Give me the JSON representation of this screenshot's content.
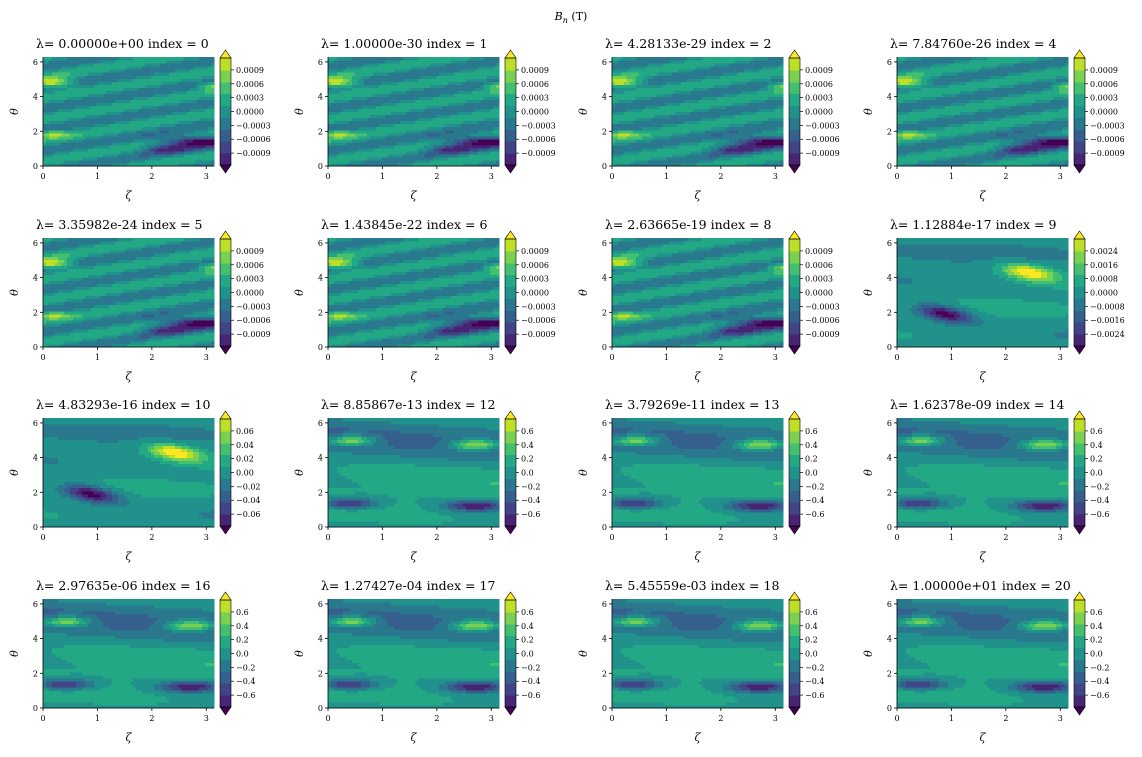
{
  "figure": {
    "suptitle": "B",
    "suptitle_sub": "n",
    "suptitle_unit": " (T)"
  },
  "chart_data": {
    "type": "heatmap",
    "layout": {
      "rows": 4,
      "cols": 4
    },
    "xlabel": "ζ",
    "ylabel": "θ",
    "xlim": [
      0,
      3.14159
    ],
    "ylim": [
      0,
      6.28319
    ],
    "xticks": [
      "0",
      "1",
      "2",
      "3"
    ],
    "yticks": [
      "0",
      "2",
      "4",
      "6"
    ],
    "lambda_label": "λ=",
    "index_label": "index =",
    "colormap": [
      "#440154",
      "#482475",
      "#414487",
      "#355f8d",
      "#2a788e",
      "#21918c",
      "#22a884",
      "#44bf70",
      "#7ad151",
      "#bddf26",
      "#fde725"
    ],
    "panels": [
      {
        "lambda": "0.00000e+00",
        "index": "0",
        "pattern": "stripes",
        "cbar": [
          "0.0009",
          "0.0006",
          "0.0003",
          "0.0000",
          "−0.0003",
          "−0.0006",
          "−0.0009"
        ]
      },
      {
        "lambda": "1.00000e-30",
        "index": "1",
        "pattern": "stripes",
        "cbar": [
          "0.0009",
          "0.0006",
          "0.0003",
          "0.0000",
          "−0.0003",
          "−0.0006",
          "−0.0009"
        ]
      },
      {
        "lambda": "4.28133e-29",
        "index": "2",
        "pattern": "stripes",
        "cbar": [
          "0.0009",
          "0.0006",
          "0.0003",
          "0.0000",
          "−0.0003",
          "−0.0006",
          "−0.0009"
        ]
      },
      {
        "lambda": "7.84760e-26",
        "index": "4",
        "pattern": "stripes",
        "cbar": [
          "0.0009",
          "0.0006",
          "0.0003",
          "0.0000",
          "−0.0003",
          "−0.0006",
          "−0.0009"
        ]
      },
      {
        "lambda": "3.35982e-24",
        "index": "5",
        "pattern": "stripes",
        "cbar": [
          "0.0009",
          "0.0006",
          "0.0003",
          "0.0000",
          "−0.0003",
          "−0.0006",
          "−0.0009"
        ]
      },
      {
        "lambda": "1.43845e-22",
        "index": "6",
        "pattern": "stripes",
        "cbar": [
          "0.0009",
          "0.0006",
          "0.0003",
          "0.0000",
          "−0.0003",
          "−0.0006",
          "−0.0009"
        ]
      },
      {
        "lambda": "2.63665e-19",
        "index": "8",
        "pattern": "stripes",
        "cbar": [
          "0.0009",
          "0.0006",
          "0.0003",
          "0.0000",
          "−0.0003",
          "−0.0006",
          "−0.0009"
        ]
      },
      {
        "lambda": "1.12884e-17",
        "index": "9",
        "pattern": "smooth",
        "cbar": [
          "0.0024",
          "0.0016",
          "0.0008",
          "0.0000",
          "−0.0008",
          "−0.0016",
          "−0.0024"
        ]
      },
      {
        "lambda": "4.83293e-16",
        "index": "10",
        "pattern": "smooth",
        "cbar": [
          "0.06",
          "0.04",
          "0.02",
          "0.00",
          "−0.02",
          "−0.04",
          "−0.06"
        ]
      },
      {
        "lambda": "8.85867e-13",
        "index": "12",
        "pattern": "bands",
        "cbar": [
          "0.6",
          "0.4",
          "0.2",
          "0.0",
          "−0.2",
          "−0.4",
          "−0.6"
        ]
      },
      {
        "lambda": "3.79269e-11",
        "index": "13",
        "pattern": "bands",
        "cbar": [
          "0.6",
          "0.4",
          "0.2",
          "0.0",
          "−0.2",
          "−0.4",
          "−0.6"
        ]
      },
      {
        "lambda": "1.62378e-09",
        "index": "14",
        "pattern": "bands",
        "cbar": [
          "0.6",
          "0.4",
          "0.2",
          "0.0",
          "−0.2",
          "−0.4",
          "−0.6"
        ]
      },
      {
        "lambda": "2.97635e-06",
        "index": "16",
        "pattern": "bands",
        "cbar": [
          "0.6",
          "0.4",
          "0.2",
          "0.0",
          "−0.2",
          "−0.4",
          "−0.6"
        ]
      },
      {
        "lambda": "1.27427e-04",
        "index": "17",
        "pattern": "bands",
        "cbar": [
          "0.6",
          "0.4",
          "0.2",
          "0.0",
          "−0.2",
          "−0.4",
          "−0.6"
        ]
      },
      {
        "lambda": "5.45559e-03",
        "index": "18",
        "pattern": "bands",
        "cbar": [
          "0.6",
          "0.4",
          "0.2",
          "0.0",
          "−0.2",
          "−0.4",
          "−0.6"
        ]
      },
      {
        "lambda": "1.00000e+01",
        "index": "20",
        "pattern": "bands",
        "cbar": [
          "0.6",
          "0.4",
          "0.2",
          "0.0",
          "−0.2",
          "−0.4",
          "−0.6"
        ]
      }
    ]
  }
}
